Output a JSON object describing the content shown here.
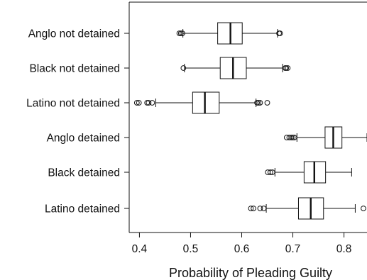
{
  "chart_data": {
    "type": "boxplot",
    "title": "",
    "xlabel": "Probability of Pleading Guilty",
    "ylabel": "",
    "xlim": [
      0.38,
      0.845
    ],
    "xticks": [
      0.4,
      0.5,
      0.6,
      0.7,
      0.8
    ],
    "xtick_labels": [
      "0.4",
      "0.5",
      "0.6",
      "0.7",
      "0.8"
    ],
    "grid": false,
    "series": [
      {
        "name": "Anglo not detained",
        "whisker_low": 0.485,
        "q1": 0.553,
        "median": 0.578,
        "q3": 0.601,
        "whisker_high": 0.67,
        "outliers": [
          0.478,
          0.481,
          0.484,
          0.673,
          0.675
        ]
      },
      {
        "name": "Black not detained",
        "whisker_low": 0.488,
        "q1": 0.558,
        "median": 0.583,
        "q3": 0.609,
        "whisker_high": 0.68,
        "outliers": [
          0.486,
          0.685,
          0.687,
          0.69
        ]
      },
      {
        "name": "Latino not detained",
        "whisker_low": 0.432,
        "q1": 0.504,
        "median": 0.528,
        "q3": 0.556,
        "whisker_high": 0.628,
        "outliers": [
          0.395,
          0.399,
          0.415,
          0.418,
          0.425,
          0.63,
          0.633,
          0.636,
          0.65
        ]
      },
      {
        "name": "Anglo detained",
        "whisker_low": 0.708,
        "q1": 0.763,
        "median": 0.779,
        "q3": 0.796,
        "whisker_high": 0.845,
        "outliers": [
          0.688,
          0.693,
          0.697,
          0.7,
          0.703
        ]
      },
      {
        "name": "Black detained",
        "whisker_low": 0.665,
        "q1": 0.722,
        "median": 0.742,
        "q3": 0.764,
        "whisker_high": 0.815,
        "outliers": [
          0.651,
          0.656,
          0.66
        ]
      },
      {
        "name": "Latino detained",
        "whisker_low": 0.648,
        "q1": 0.711,
        "median": 0.735,
        "q3": 0.76,
        "whisker_high": 0.822,
        "outliers": [
          0.618,
          0.623,
          0.636,
          0.643,
          0.838
        ]
      }
    ]
  }
}
